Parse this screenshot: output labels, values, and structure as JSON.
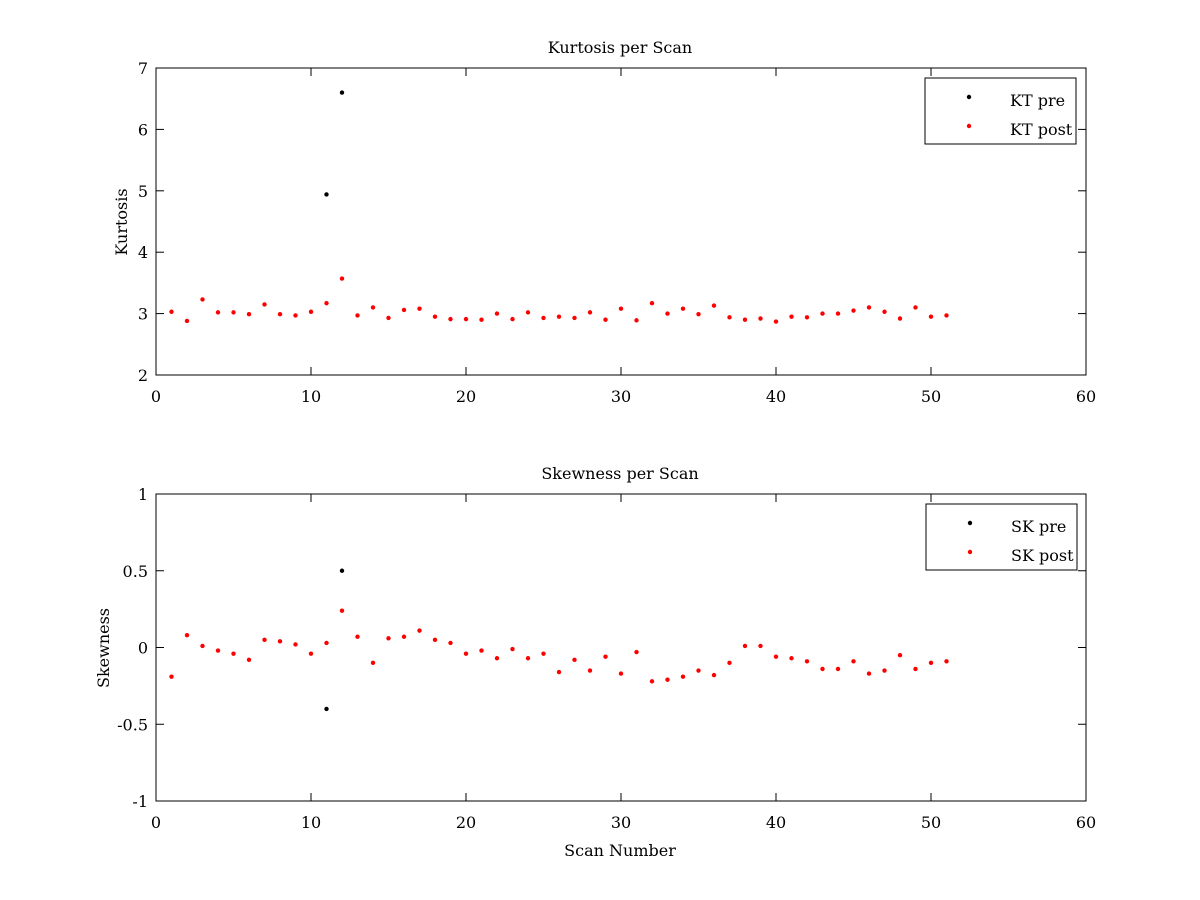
{
  "colors": {
    "pre": "#000000",
    "post": "#ff0000",
    "background": "#ffffff"
  },
  "chart_data": [
    {
      "type": "scatter",
      "title": "Kurtosis per Scan",
      "xlabel": "",
      "ylabel": "Kurtosis",
      "xlim": [
        0,
        60
      ],
      "ylim": [
        2,
        7
      ],
      "xticks": [
        0,
        10,
        20,
        30,
        40,
        50,
        60
      ],
      "yticks": [
        2,
        3,
        4,
        5,
        6,
        7
      ],
      "xtick_labels": [
        "0",
        "10",
        "20",
        "30",
        "40",
        "50",
        "60"
      ],
      "ytick_labels": [
        "2",
        "3",
        "4",
        "5",
        "6",
        "7"
      ],
      "legend": {
        "placement": "top-right",
        "entries": [
          "KT pre",
          "KT post"
        ]
      },
      "grid": false,
      "series": [
        {
          "name": "KT pre",
          "color": "#000000",
          "x": [
            11,
            12
          ],
          "y": [
            4.94,
            6.6
          ]
        },
        {
          "name": "KT post",
          "color": "#ff0000",
          "x": [
            1,
            2,
            3,
            4,
            5,
            6,
            7,
            8,
            9,
            10,
            11,
            12,
            13,
            14,
            15,
            16,
            17,
            18,
            19,
            20,
            21,
            22,
            23,
            24,
            25,
            26,
            27,
            28,
            29,
            30,
            31,
            32,
            33,
            34,
            35,
            36,
            37,
            38,
            39,
            40,
            41,
            42,
            43,
            44,
            45,
            46,
            47,
            48,
            49,
            50,
            51
          ],
          "y": [
            3.03,
            2.88,
            3.23,
            3.02,
            3.02,
            2.99,
            3.15,
            2.99,
            2.97,
            3.03,
            3.17,
            3.57,
            2.97,
            3.1,
            2.93,
            3.06,
            3.08,
            2.95,
            2.91,
            2.91,
            2.9,
            3.0,
            2.91,
            3.02,
            2.93,
            2.95,
            2.93,
            3.02,
            2.9,
            3.08,
            2.89,
            3.17,
            3.0,
            3.08,
            2.99,
            3.13,
            2.94,
            2.9,
            2.92,
            2.87,
            2.95,
            2.94,
            3.0,
            3.0,
            3.05,
            3.1,
            3.03,
            2.92,
            3.1,
            2.95,
            2.97
          ]
        }
      ]
    },
    {
      "type": "scatter",
      "title": "Skewness per Scan",
      "xlabel": "Scan Number",
      "ylabel": "Skewness",
      "xlim": [
        0,
        60
      ],
      "ylim": [
        -1,
        1
      ],
      "xticks": [
        0,
        10,
        20,
        30,
        40,
        50,
        60
      ],
      "yticks": [
        -1,
        -0.5,
        0,
        0.5,
        1
      ],
      "xtick_labels": [
        "0",
        "10",
        "20",
        "30",
        "40",
        "50",
        "60"
      ],
      "ytick_labels": [
        "-1",
        "-0.5",
        "0",
        "0.5",
        "1"
      ],
      "legend": {
        "placement": "top-right",
        "entries": [
          "SK pre",
          "SK post"
        ]
      },
      "grid": false,
      "series": [
        {
          "name": "SK pre",
          "color": "#000000",
          "x": [
            11,
            12
          ],
          "y": [
            -0.4,
            0.5
          ]
        },
        {
          "name": "SK post",
          "color": "#ff0000",
          "x": [
            1,
            2,
            3,
            4,
            5,
            6,
            7,
            8,
            9,
            10,
            11,
            12,
            13,
            14,
            15,
            16,
            17,
            18,
            19,
            20,
            21,
            22,
            23,
            24,
            25,
            26,
            27,
            28,
            29,
            30,
            31,
            32,
            33,
            34,
            35,
            36,
            37,
            38,
            39,
            40,
            41,
            42,
            43,
            44,
            45,
            46,
            47,
            48,
            49,
            50,
            51
          ],
          "y": [
            -0.19,
            0.08,
            0.01,
            -0.02,
            -0.04,
            -0.08,
            0.05,
            0.04,
            0.02,
            -0.04,
            0.03,
            0.24,
            0.07,
            -0.1,
            0.06,
            0.07,
            0.11,
            0.05,
            0.03,
            -0.04,
            -0.02,
            -0.07,
            -0.01,
            -0.07,
            -0.04,
            -0.16,
            -0.08,
            -0.15,
            -0.06,
            -0.17,
            -0.03,
            -0.22,
            -0.21,
            -0.19,
            -0.15,
            -0.18,
            -0.1,
            0.01,
            0.01,
            -0.06,
            -0.07,
            -0.09,
            -0.14,
            -0.14,
            -0.09,
            -0.17,
            -0.15,
            -0.05,
            -0.14,
            -0.1,
            -0.09
          ]
        }
      ]
    }
  ]
}
